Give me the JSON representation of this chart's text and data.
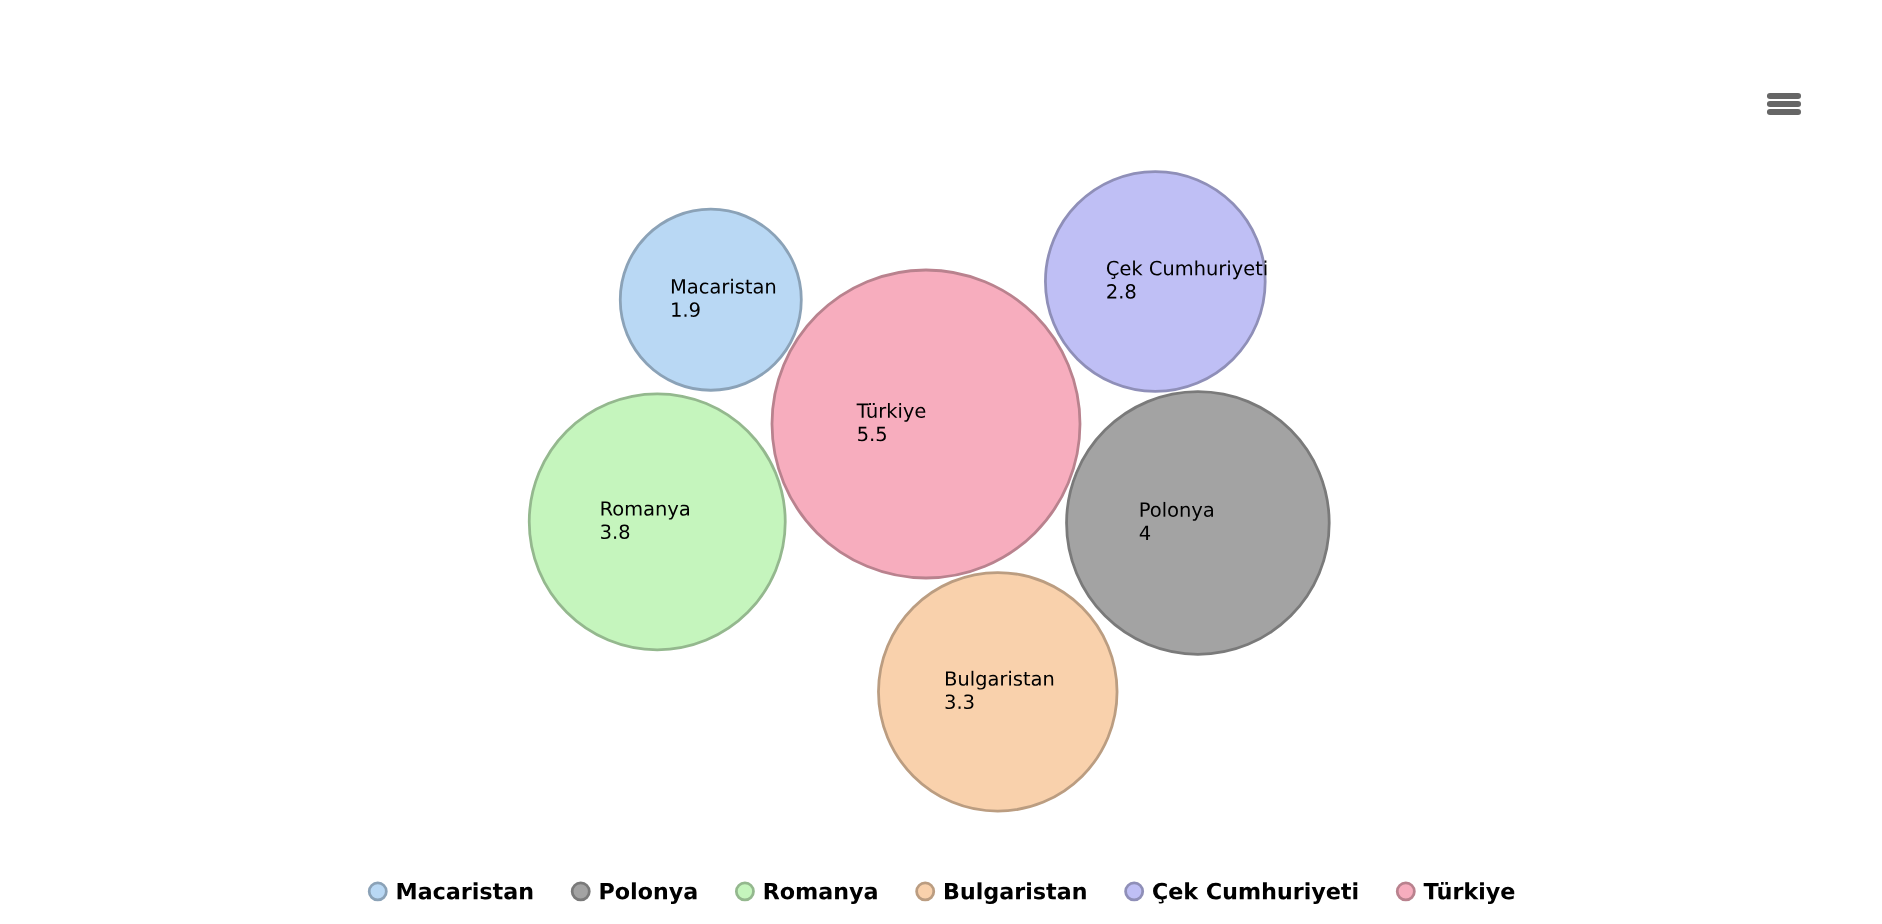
{
  "chart_data": {
    "type": "other",
    "series": [
      {
        "name": "Macaristan",
        "color": "#b9d8f4",
        "values": [
          1.9
        ]
      },
      {
        "name": "Polonya",
        "color": "#a3a3a3",
        "values": [
          4
        ]
      },
      {
        "name": "Romanya",
        "color": "#c5f5bd",
        "values": [
          3.8
        ]
      },
      {
        "name": "Bulgaristan",
        "color": "#f9d1ac",
        "values": [
          3.3
        ]
      },
      {
        "name": "Çek Cumhuriyeti",
        "color": "#bfbff5",
        "values": [
          2.8
        ]
      },
      {
        "name": "Türkiye",
        "color": "#f7adbe",
        "values": [
          5.5
        ]
      }
    ],
    "data_labels": true,
    "legend": "bottom"
  }
}
